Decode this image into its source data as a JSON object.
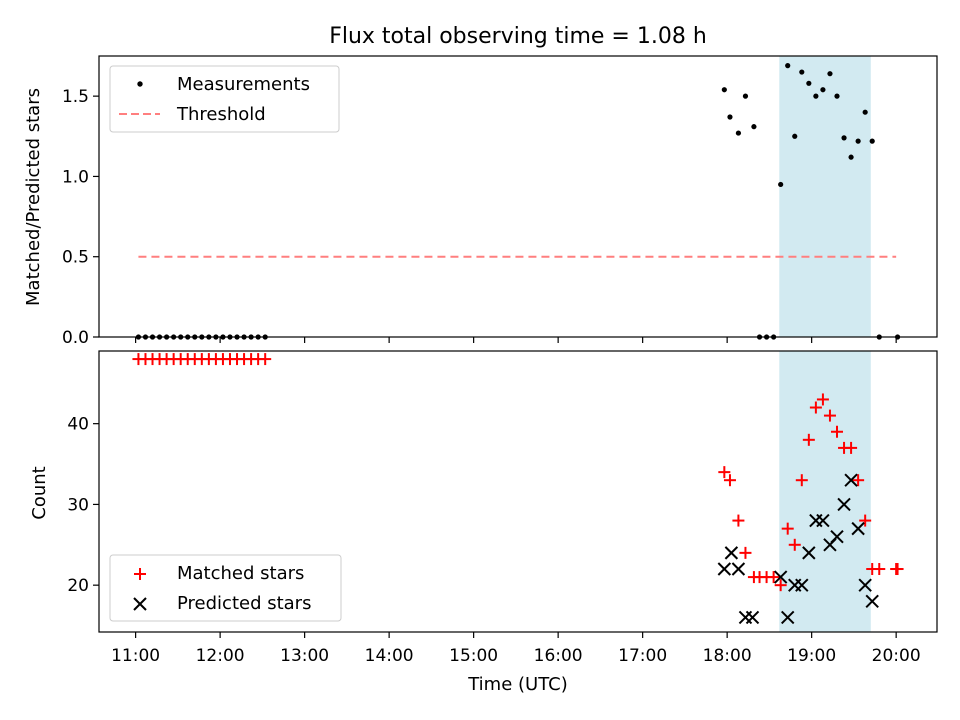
{
  "chart_data": [
    {
      "type": "scatter",
      "title": "Flux total observing time = 1.08 h",
      "xlabel": "",
      "ylabel": "Matched/Predicted stars",
      "xlim": [
        "10:34",
        "20:29"
      ],
      "ylim": [
        0,
        1.75
      ],
      "yticks": [
        0.0,
        0.5,
        1.0,
        1.5
      ],
      "ytick_labels": [
        "0.0",
        "0.5",
        "1.0",
        "1.5"
      ],
      "highlight_span": [
        "18:37",
        "19:42"
      ],
      "highlight_color": "#add8e6",
      "legend_position": "upper left",
      "series": [
        {
          "name": "Measurements",
          "kind": "scatter",
          "marker": "dot",
          "color": "#000000",
          "points": [
            [
              "11:02",
              0
            ],
            [
              "11:07",
              0
            ],
            [
              "11:12",
              0
            ],
            [
              "11:17",
              0
            ],
            [
              "11:22",
              0
            ],
            [
              "11:27",
              0
            ],
            [
              "11:32",
              0
            ],
            [
              "11:37",
              0
            ],
            [
              "11:42",
              0
            ],
            [
              "11:47",
              0
            ],
            [
              "11:52",
              0
            ],
            [
              "11:57",
              0
            ],
            [
              "12:02",
              0
            ],
            [
              "12:07",
              0
            ],
            [
              "12:12",
              0
            ],
            [
              "12:17",
              0
            ],
            [
              "12:22",
              0
            ],
            [
              "12:27",
              0
            ],
            [
              "12:32",
              0
            ],
            [
              "17:58",
              1.54
            ],
            [
              "18:02",
              1.37
            ],
            [
              "18:08",
              1.27
            ],
            [
              "18:13",
              1.5
            ],
            [
              "18:19",
              1.31
            ],
            [
              "18:23",
              0
            ],
            [
              "18:28",
              0
            ],
            [
              "18:33",
              0
            ],
            [
              "18:38",
              0.95
            ],
            [
              "18:43",
              1.69
            ],
            [
              "18:48",
              1.25
            ],
            [
              "18:53",
              1.65
            ],
            [
              "18:58",
              1.58
            ],
            [
              "19:03",
              1.5
            ],
            [
              "19:08",
              1.54
            ],
            [
              "19:13",
              1.64
            ],
            [
              "19:18",
              1.5
            ],
            [
              "19:23",
              1.24
            ],
            [
              "19:28",
              1.12
            ],
            [
              "19:33",
              1.22
            ],
            [
              "19:38",
              1.4
            ],
            [
              "19:43",
              1.22
            ],
            [
              "19:48",
              0
            ],
            [
              "20:01",
              0
            ]
          ]
        },
        {
          "name": "Threshold",
          "kind": "line",
          "style": "dashed",
          "color": "#ff7f7f",
          "x": [
            "11:02",
            "20:00"
          ],
          "y": [
            0.5,
            0.5
          ]
        }
      ]
    },
    {
      "type": "scatter",
      "title": "",
      "xlabel": "Time (UTC)",
      "ylabel": "Count",
      "xlim": [
        "10:34",
        "20:29"
      ],
      "ylim": [
        14.2,
        49
      ],
      "yticks": [
        20,
        30,
        40
      ],
      "ytick_labels": [
        "20",
        "30",
        "40"
      ],
      "xticks": [
        "11:00",
        "12:00",
        "13:00",
        "14:00",
        "15:00",
        "16:00",
        "17:00",
        "18:00",
        "19:00",
        "20:00"
      ],
      "xtick_labels": [
        "11:00",
        "12:00",
        "13:00",
        "14:00",
        "15:00",
        "16:00",
        "17:00",
        "18:00",
        "19:00",
        "20:00"
      ],
      "highlight_span": [
        "18:37",
        "19:42"
      ],
      "highlight_color": "#add8e6",
      "legend_position": "lower left",
      "series": [
        {
          "name": "Matched stars",
          "kind": "scatter",
          "marker": "plus",
          "color": "#ff0000",
          "points": [
            [
              "11:02",
              48
            ],
            [
              "11:07",
              48
            ],
            [
              "11:12",
              48
            ],
            [
              "11:17",
              48
            ],
            [
              "11:22",
              48
            ],
            [
              "11:27",
              48
            ],
            [
              "11:32",
              48
            ],
            [
              "11:37",
              48
            ],
            [
              "11:42",
              48
            ],
            [
              "11:47",
              48
            ],
            [
              "11:52",
              48
            ],
            [
              "11:57",
              48
            ],
            [
              "12:02",
              48
            ],
            [
              "12:07",
              48
            ],
            [
              "12:12",
              48
            ],
            [
              "12:17",
              48
            ],
            [
              "12:22",
              48
            ],
            [
              "12:27",
              48
            ],
            [
              "12:32",
              48
            ],
            [
              "17:58",
              34
            ],
            [
              "18:02",
              33
            ],
            [
              "18:08",
              28
            ],
            [
              "18:13",
              24
            ],
            [
              "18:19",
              21
            ],
            [
              "18:23",
              21
            ],
            [
              "18:28",
              21
            ],
            [
              "18:33",
              21
            ],
            [
              "18:38",
              20
            ],
            [
              "18:43",
              27
            ],
            [
              "18:48",
              25
            ],
            [
              "18:53",
              33
            ],
            [
              "18:58",
              38
            ],
            [
              "19:03",
              42
            ],
            [
              "19:08",
              43
            ],
            [
              "19:13",
              41
            ],
            [
              "19:18",
              39
            ],
            [
              "19:23",
              37
            ],
            [
              "19:28",
              37
            ],
            [
              "19:33",
              33
            ],
            [
              "19:38",
              28
            ],
            [
              "19:43",
              22
            ],
            [
              "19:48",
              22
            ],
            [
              "20:00",
              22
            ],
            [
              "20:01",
              22
            ]
          ]
        },
        {
          "name": "Predicted stars",
          "kind": "scatter",
          "marker": "x",
          "color": "#000000",
          "points": [
            [
              "17:58",
              22
            ],
            [
              "18:03",
              24
            ],
            [
              "18:08",
              22
            ],
            [
              "18:13",
              16
            ],
            [
              "18:18",
              16
            ],
            [
              "18:38",
              21
            ],
            [
              "18:43",
              16
            ],
            [
              "18:48",
              20
            ],
            [
              "18:53",
              20
            ],
            [
              "18:58",
              24
            ],
            [
              "19:03",
              28
            ],
            [
              "19:08",
              28
            ],
            [
              "19:13",
              25
            ],
            [
              "19:18",
              26
            ],
            [
              "19:23",
              30
            ],
            [
              "19:28",
              33
            ],
            [
              "19:33",
              27
            ],
            [
              "19:38",
              20
            ],
            [
              "19:43",
              18
            ]
          ]
        }
      ]
    }
  ]
}
